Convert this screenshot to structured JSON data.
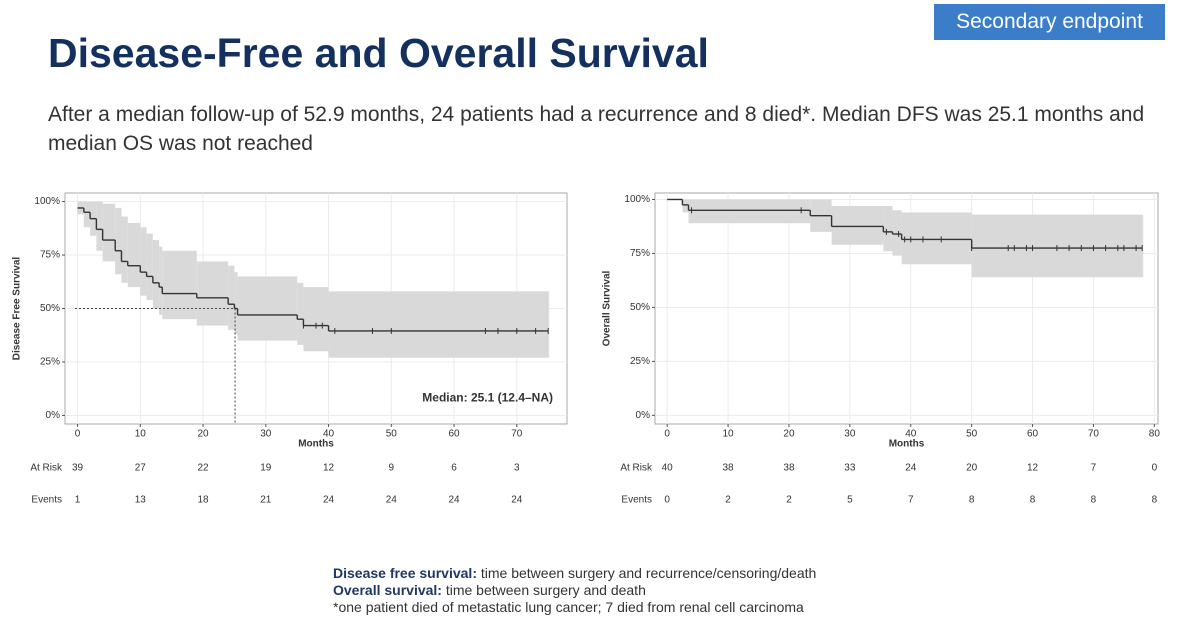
{
  "header": {
    "title": "Disease-Free and Overall Survival",
    "badge": "Secondary endpoint",
    "subtitle": "After a median follow-up of 52.9 months, 24 patients had a recurrence and 8 died*. Median DFS was 25.1 months and median OS was not reached"
  },
  "chart_data": [
    {
      "type": "survival",
      "y_label": "Disease Free Survival",
      "x_label": "Months",
      "color": "#333333",
      "band_color": "#d9d9d9",
      "grid": true,
      "xlim": [
        -2,
        78
      ],
      "ylim": [
        -4,
        104
      ],
      "xticks": [
        0,
        10,
        20,
        30,
        40,
        50,
        60,
        70
      ],
      "yticks": [
        {
          "value": 0,
          "label": "0%"
        },
        {
          "value": 25,
          "label": "25%"
        },
        {
          "value": 50,
          "label": "50%"
        },
        {
          "value": 75,
          "label": "75%"
        },
        {
          "value": 100,
          "label": "100%"
        }
      ],
      "x": [
        0,
        1,
        2,
        3,
        4,
        6,
        7,
        8,
        10,
        11,
        12,
        13,
        13.5,
        19,
        24,
        25,
        25.5,
        35,
        36,
        40,
        75
      ],
      "values": [
        97,
        95,
        92,
        87,
        82,
        77,
        72,
        70,
        67,
        65,
        62,
        60,
        57,
        55,
        52,
        50,
        47,
        45,
        42,
        39.5,
        39.5
      ],
      "upper": [
        100,
        100,
        100,
        100,
        99,
        97,
        93,
        90,
        88,
        85,
        82,
        79,
        77,
        72,
        70,
        67,
        65,
        62,
        60,
        58,
        58
      ],
      "lower": [
        94,
        88,
        84,
        77,
        72,
        66,
        62,
        60,
        56,
        54,
        50,
        47,
        45,
        42,
        40,
        38,
        35,
        33,
        30,
        27,
        27
      ],
      "censored_x": [
        36,
        38,
        39,
        41,
        47,
        50,
        65,
        67,
        70,
        73,
        75
      ],
      "median_x": 25.1,
      "median_y": 50,
      "annotation": "Median: 25.1 (12.4–NA)",
      "risk_times": [
        0,
        10,
        20,
        30,
        40,
        50,
        60,
        70
      ],
      "at_risk_label": "At Risk",
      "at_risk": [
        39,
        27,
        22,
        19,
        12,
        9,
        6,
        3
      ],
      "events_label": "Events",
      "events": [
        1,
        13,
        18,
        21,
        24,
        24,
        24,
        24
      ]
    },
    {
      "type": "survival",
      "y_label": "Overall Survival",
      "x_label": "Months",
      "color": "#333333",
      "band_color": "#d9d9d9",
      "grid": true,
      "xlim": [
        -2,
        80.6
      ],
      "ylim": [
        -4,
        103
      ],
      "xticks": [
        0,
        10,
        20,
        30,
        40,
        50,
        60,
        70,
        80
      ],
      "yticks": [
        {
          "value": 0,
          "label": "0%"
        },
        {
          "value": 25,
          "label": "25%"
        },
        {
          "value": 50,
          "label": "50%"
        },
        {
          "value": 75,
          "label": "75%"
        },
        {
          "value": 100,
          "label": "100%"
        }
      ],
      "x": [
        0,
        2.5,
        3.5,
        23.5,
        27,
        35.5,
        37,
        38.5,
        50,
        78
      ],
      "values": [
        100,
        97.5,
        95,
        92.5,
        87.5,
        85,
        84,
        81.5,
        77.5,
        77.5
      ],
      "upper": [
        100,
        100,
        100,
        100,
        97,
        97,
        95,
        94,
        93,
        93
      ],
      "lower": [
        100,
        94,
        89,
        85,
        79,
        76,
        74,
        70,
        64,
        64
      ],
      "censored_x": [
        4,
        22,
        36,
        38,
        39,
        40,
        42,
        45,
        50,
        56,
        57,
        59,
        60,
        64,
        66,
        68,
        70,
        72,
        74,
        75,
        77,
        78
      ],
      "risk_times": [
        0,
        10,
        20,
        30,
        40,
        50,
        60,
        70,
        80
      ],
      "at_risk_label": "At Risk",
      "at_risk": [
        40,
        38,
        38,
        33,
        24,
        20,
        12,
        7,
        0
      ],
      "events_label": "Events",
      "events": [
        0,
        2,
        2,
        5,
        7,
        8,
        8,
        8,
        8
      ]
    }
  ],
  "footnotes": [
    {
      "term": "Disease free survival:",
      "text": "time between surgery and recurrence/censoring/death"
    },
    {
      "term": "Overall survival:",
      "text": "time between surgery and death"
    },
    {
      "text": "*one patient died of metastatic lung cancer; 7 died from renal cell carcinoma"
    }
  ]
}
